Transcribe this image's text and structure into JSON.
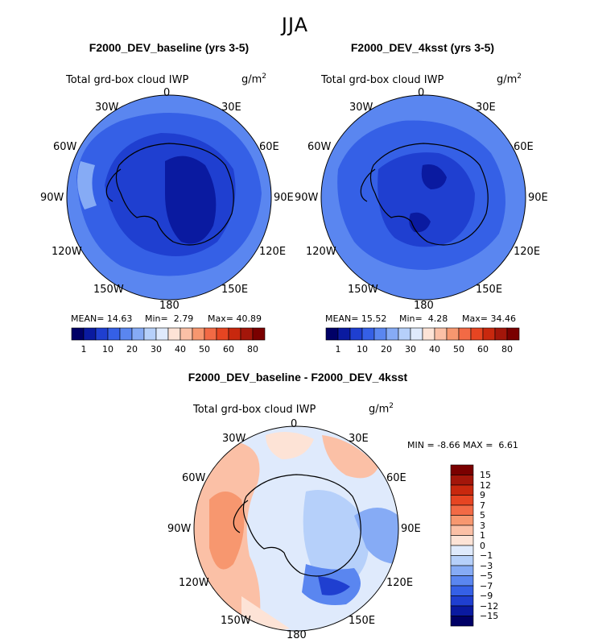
{
  "season": "JJA",
  "colors": {
    "blues": [
      "#000066",
      "#0a1aa0",
      "#1f3fd0",
      "#3560e6",
      "#5a86f0",
      "#86abf5",
      "#b6d0fa",
      "#dfeafc"
    ],
    "reds": [
      "#fde3d6",
      "#fbc0a6",
      "#f7976f",
      "#f26a45",
      "#e64522",
      "#c8280e",
      "#a3160a",
      "#7a0000"
    ],
    "coast": "#000000"
  },
  "panel1": {
    "title": "F2000_DEV_baseline (yrs 3-5)",
    "variable": "Total grd-box cloud IWP",
    "unit": "g/m",
    "unit_exp": "2",
    "stats": {
      "mean_label": "MEAN=",
      "mean": "14.63",
      "min_label": "Min=",
      "min": "2.79",
      "max_label": "Max=",
      "max": "40.89"
    }
  },
  "panel2": {
    "title": "F2000_DEV_4ksst (yrs 3-5)",
    "variable": "Total grd-box cloud IWP",
    "unit": "g/m",
    "unit_exp": "2",
    "stats": {
      "mean_label": "MEAN=",
      "mean": "15.52",
      "min_label": "Min=",
      "min": "4.28",
      "max_label": "Max=",
      "max": "34.46"
    }
  },
  "panel3": {
    "title": "F2000_DEV_baseline - F2000_DEV_4ksst",
    "variable": "Total grd-box cloud IWP",
    "unit": "g/m",
    "unit_exp": "2",
    "stats": {
      "min_label": "MIN =",
      "min": "-8.66",
      "max_label": "MAX =",
      "max": "6.61"
    }
  },
  "lon_labels": [
    "0",
    "30E",
    "60E",
    "90E",
    "120E",
    "150E",
    "180",
    "150W",
    "120W",
    "90W",
    "60W",
    "30W"
  ],
  "colorbar_top": [
    "1",
    "10",
    "20",
    "30",
    "40",
    "50",
    "60",
    "80"
  ],
  "colorbar_diff": [
    "15",
    "12",
    "9",
    "7",
    "5",
    "3",
    "1",
    "0",
    "−1",
    "−3",
    "−5",
    "−7",
    "−9",
    "−12",
    "−15"
  ]
}
